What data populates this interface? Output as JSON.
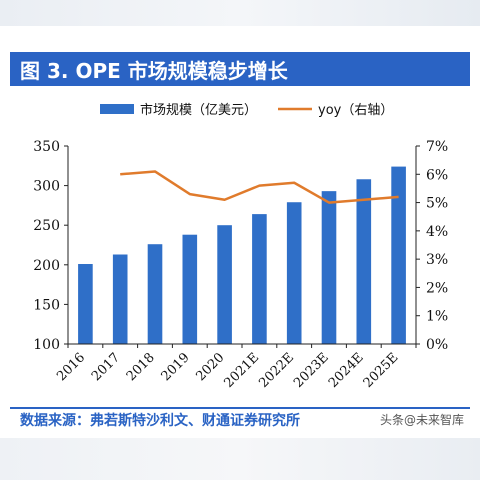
{
  "header": {
    "title": "图 3. OPE 市场规模稳步增长"
  },
  "footer": {
    "source": "数据来源：弗若斯特沙利文、财通证券研究所",
    "watermark": "头条@未来智库"
  },
  "colors": {
    "bar": "#2f6fc8",
    "line": "#e07b2c",
    "title_bg": "#2a63c4"
  },
  "chart_data": {
    "type": "bar",
    "categories": [
      "2016",
      "2017",
      "2018",
      "2019",
      "2020",
      "2021E",
      "2022E",
      "2023E",
      "2024E",
      "2025E"
    ],
    "series": [
      {
        "name": "市场规模（亿美元）",
        "type": "bar",
        "axis": "left",
        "values": [
          201,
          213,
          226,
          238,
          250,
          264,
          279,
          293,
          308,
          324
        ]
      },
      {
        "name": "yoy（右轴）",
        "type": "line",
        "axis": "right",
        "values": [
          null,
          6.0,
          6.1,
          5.3,
          5.1,
          5.6,
          5.7,
          5.0,
          5.1,
          5.2
        ]
      }
    ],
    "y_left": {
      "ylim": [
        100,
        350
      ],
      "ticks": [
        "100",
        "150",
        "200",
        "250",
        "300",
        "350"
      ]
    },
    "y_right": {
      "ylim": [
        0,
        7
      ],
      "ticks": [
        "0%",
        "1%",
        "2%",
        "3%",
        "4%",
        "5%",
        "6%",
        "7%"
      ]
    },
    "legend_position": "top",
    "grid": false
  }
}
